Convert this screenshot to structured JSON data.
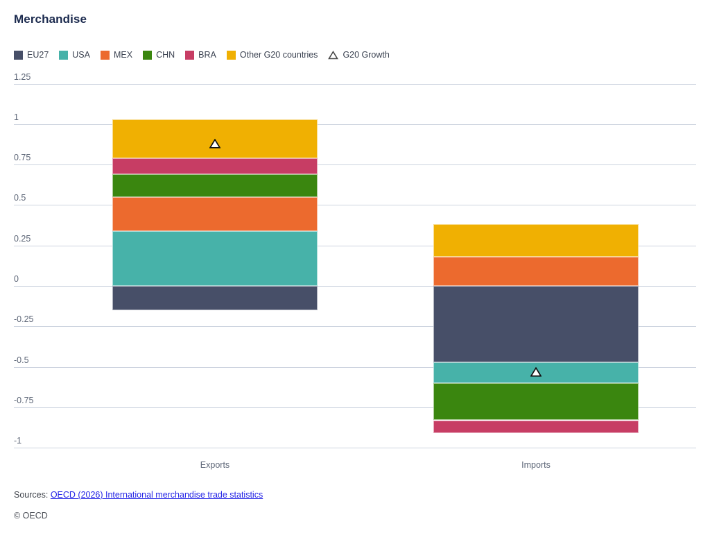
{
  "title": "Merchandise",
  "legend": {
    "items": [
      {
        "label": "EU27",
        "type": "square",
        "color": "#474f68"
      },
      {
        "label": "USA",
        "type": "square",
        "color": "#47b2a9"
      },
      {
        "label": "MEX",
        "type": "square",
        "color": "#ec6a2e"
      },
      {
        "label": "CHN",
        "type": "square",
        "color": "#3a860f"
      },
      {
        "label": "BRA",
        "type": "square",
        "color": "#c73d64"
      },
      {
        "label": "Other G20 countries",
        "type": "square",
        "color": "#f0b002"
      },
      {
        "label": "G20 Growth",
        "type": "triangle",
        "color": "#333333"
      }
    ]
  },
  "chart_data": {
    "type": "bar",
    "subtype": "stacked-column-with-marker-overlay",
    "title": "Merchandise",
    "categories": [
      "Exports",
      "Imports"
    ],
    "series": [
      {
        "name": "EU27",
        "color": "#474f68",
        "values": [
          -0.15,
          -0.47
        ]
      },
      {
        "name": "USA",
        "color": "#47b2a9",
        "values": [
          0.34,
          -0.13
        ]
      },
      {
        "name": "MEX",
        "color": "#ec6a2e",
        "values": [
          0.21,
          0.18
        ]
      },
      {
        "name": "CHN",
        "color": "#3a860f",
        "values": [
          0.14,
          -0.23
        ]
      },
      {
        "name": "BRA",
        "color": "#c73d64",
        "values": [
          0.1,
          -0.08
        ]
      },
      {
        "name": "Other G20 countries",
        "color": "#f0b002",
        "values": [
          0.24,
          0.2
        ]
      }
    ],
    "marker_series": {
      "name": "G20 Growth",
      "marker": "white-triangle",
      "values": [
        0.88,
        -0.53
      ]
    },
    "yticks": [
      1.25,
      1,
      0.75,
      0.5,
      0.25,
      0,
      -0.25,
      -0.5,
      -0.75,
      -1
    ],
    "ytick_labels": [
      "1.25",
      "1",
      "0.75",
      "0.5",
      "0.25",
      "0",
      "-0.25",
      "-0.5",
      "-0.75",
      "-1"
    ],
    "ylim": [
      -1,
      1.25
    ],
    "xlabel": "",
    "ylabel": "",
    "grid": true,
    "legend_position": "top",
    "gridline_color": "#ccd3df"
  },
  "footer": {
    "sources_prefix": "Sources: ",
    "source_link": "OECD (2026) International merchandise trade statistics",
    "copyright": "© OECD"
  }
}
